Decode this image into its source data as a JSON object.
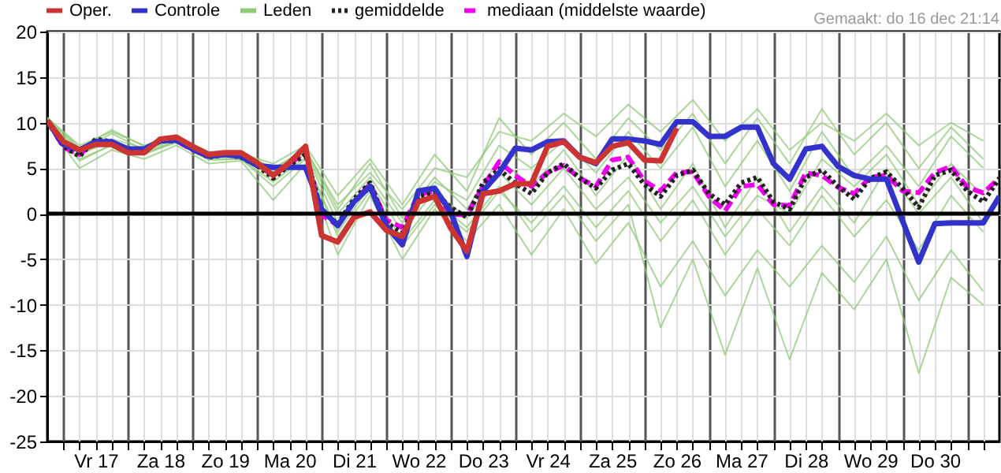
{
  "chart_data": {
    "type": "line",
    "annotations": [
      "Gemaakt: do 16 dec 21:14"
    ],
    "x": [
      "--12-16T18:00",
      "--12-17T00:00",
      "--12-17T06:00",
      "--12-17T12:00",
      "--12-17T18:00",
      "--12-18T00:00",
      "--12-18T06:00",
      "--12-18T12:00",
      "--12-18T18:00",
      "--12-19T00:00",
      "--12-19T06:00",
      "--12-19T12:00",
      "--12-19T18:00",
      "--12-20T00:00",
      "--12-20T06:00",
      "--12-20T12:00",
      "--12-20T18:00",
      "--12-21T00:00",
      "--12-21T06:00",
      "--12-21T12:00",
      "--12-21T18:00",
      "--12-22T00:00",
      "--12-22T06:00",
      "--12-22T12:00",
      "--12-22T18:00",
      "--12-23T00:00",
      "--12-23T06:00",
      "--12-23T12:00",
      "--12-23T18:00",
      "--12-24T00:00",
      "--12-24T06:00",
      "--12-24T12:00",
      "--12-24T18:00",
      "--12-25T00:00",
      "--12-25T06:00",
      "--12-25T12:00",
      "--12-25T18:00",
      "--12-26T00:00",
      "--12-26T06:00",
      "--12-26T12:00",
      "--12-26T18:00",
      "--12-27T00:00",
      "--12-27T06:00",
      "--12-27T12:00",
      "--12-27T18:00",
      "--12-28T00:00",
      "--12-28T06:00",
      "--12-28T12:00",
      "--12-28T18:00",
      "--12-29T00:00",
      "--12-29T06:00",
      "--12-29T12:00",
      "--12-29T18:00",
      "--12-30T00:00",
      "--12-30T06:00",
      "--12-30T12:00",
      "--12-30T18:00",
      "--12-31T00:00",
      "--12-31T06:00",
      "--12-31T12:00"
    ],
    "series": [
      {
        "name": "Oper.",
        "color": "#cc3333",
        "line_style": "solid",
        "values": [
          10.2,
          7.9,
          7.0,
          7.6,
          7.6,
          6.7,
          6.7,
          8.2,
          8.4,
          7.4,
          6.5,
          6.7,
          6.7,
          5.6,
          4.2,
          5.6,
          7.4,
          -2.4,
          -3.1,
          -0.4,
          0.2,
          -1.8,
          -2.5,
          1.3,
          1.9,
          -1.6,
          -4.1,
          2.2,
          2.5,
          3.3,
          3.3,
          7.4,
          7.9,
          6.2,
          5.6,
          7.4,
          7.8,
          5.9,
          5.8,
          9.4,
          null,
          null,
          null,
          null,
          null,
          null,
          null,
          null,
          null,
          null,
          null,
          null,
          null,
          null,
          null,
          null,
          null,
          null,
          null,
          null
        ]
      },
      {
        "name": "Controle",
        "color": "#3333cc",
        "line_style": "solid",
        "values": [
          10.2,
          7.6,
          7.0,
          7.9,
          7.9,
          7.1,
          7.1,
          8.0,
          8.1,
          7.1,
          6.3,
          6.5,
          6.3,
          5.3,
          5.1,
          5.1,
          5.1,
          0.5,
          -1.3,
          1.3,
          3.0,
          -1.3,
          -3.4,
          2.5,
          2.8,
          0.2,
          -4.7,
          2.5,
          4.5,
          7.2,
          7.0,
          7.9,
          8.0,
          6.2,
          5.5,
          8.2,
          8.2,
          8.0,
          7.6,
          10.1,
          10.1,
          8.5,
          8.5,
          9.5,
          9.5,
          5.5,
          3.8,
          7.1,
          7.4,
          5.2,
          4.2,
          3.8,
          3.8,
          -0.8,
          -5.3,
          -1.1,
          -1.0,
          -1.0,
          -1.0,
          1.9
        ]
      },
      {
        "name": "Leden",
        "color": "#90c978",
        "x": [
          "--12-16T18:00",
          "--12-17T06:00",
          "--12-17T18:00",
          "--12-18T06:00",
          "--12-18T18:00",
          "--12-19T06:00",
          "--12-19T18:00",
          "--12-20T06:00",
          "--12-20T18:00",
          "--12-21T06:00",
          "--12-21T18:00",
          "--12-22T06:00",
          "--12-22T18:00",
          "--12-23T06:00",
          "--12-23T18:00",
          "--12-24T06:00",
          "--12-24T18:00",
          "--12-25T06:00",
          "--12-25T18:00",
          "--12-26T06:00",
          "--12-26T18:00",
          "--12-27T06:00",
          "--12-27T18:00",
          "--12-28T06:00",
          "--12-28T18:00",
          "--12-29T06:00",
          "--12-29T18:00",
          "--12-30T06:00",
          "--12-30T18:00",
          "--12-31T06:00"
        ],
        "values": [
          10.5,
          7.5,
          9.0,
          7.5,
          8.5,
          6.8,
          6.8,
          5.0,
          7.0,
          1.0,
          4.5,
          0.5,
          5.0,
          4.0,
          9.0,
          8.0,
          11.0,
          8.5,
          12.0,
          9.0,
          12.5,
          8.0,
          11.5,
          7.0,
          10.0,
          8.0,
          11.0,
          7.5,
          10.0,
          8.0
        ]
      },
      {
        "name": "gemiddelde",
        "color": "#222222",
        "line_style": "dotted",
        "values": [
          10.2,
          7.4,
          6.3,
          8.2,
          7.9,
          7.1,
          6.9,
          8.0,
          8.0,
          7.1,
          6.2,
          6.5,
          6.2,
          5.3,
          3.9,
          5.3,
          6.5,
          0.3,
          -1.1,
          1.6,
          3.4,
          -1.0,
          -2.1,
          1.9,
          2.3,
          0.7,
          -0.4,
          3.4,
          4.9,
          3.3,
          2.2,
          4.5,
          5.5,
          3.9,
          2.8,
          4.8,
          5.5,
          3.2,
          1.9,
          4.2,
          4.8,
          2.2,
          1.0,
          3.4,
          4.0,
          1.3,
          0.5,
          4.0,
          4.8,
          3.0,
          1.6,
          3.9,
          4.6,
          2.8,
          0.7,
          4.2,
          4.8,
          2.5,
          1.3,
          3.9
        ]
      },
      {
        "name": "mediaan (middelste waarde)",
        "color": "#ee00ee",
        "line_style": "dashed",
        "values": [
          10.2,
          7.3,
          6.5,
          8.0,
          7.8,
          7.0,
          6.9,
          8.1,
          8.0,
          7.0,
          6.3,
          6.6,
          6.3,
          5.4,
          4.2,
          5.4,
          6.8,
          -0.1,
          -1.3,
          1.3,
          3.3,
          -0.7,
          -1.5,
          2.1,
          2.5,
          -0.1,
          -0.1,
          3.0,
          5.7,
          4.2,
          3.0,
          4.5,
          5.3,
          3.9,
          3.0,
          5.9,
          6.2,
          3.6,
          2.5,
          4.5,
          4.6,
          1.9,
          0.3,
          3.0,
          3.2,
          1.0,
          0.9,
          4.5,
          4.2,
          2.9,
          2.2,
          4.0,
          4.2,
          2.5,
          2.3,
          4.5,
          5.2,
          2.9,
          2.3,
          3.9
        ]
      },
      {
        "name": null,
        "color": "#90c978",
        "x": [
          "--12-16T18:00",
          "--12-17T06:00",
          "--12-17T18:00",
          "--12-18T06:00",
          "--12-18T18:00",
          "--12-19T06:00",
          "--12-19T18:00",
          "--12-20T06:00",
          "--12-20T18:00",
          "--12-21T06:00",
          "--12-21T18:00",
          "--12-22T06:00",
          "--12-22T18:00",
          "--12-23T06:00",
          "--12-23T18:00",
          "--12-24T06:00",
          "--12-24T18:00",
          "--12-25T06:00",
          "--12-25T18:00",
          "--12-26T06:00",
          "--12-26T18:00",
          "--12-27T06:00",
          "--12-27T18:00",
          "--12-28T06:00",
          "--12-28T18:00",
          "--12-29T06:00",
          "--12-29T18:00",
          "--12-30T06:00",
          "--12-30T18:00",
          "--12-31T06:00"
        ],
        "values": [
          9.8,
          5.0,
          7.0,
          6.0,
          7.5,
          5.5,
          5.8,
          1.5,
          5.5,
          -4.5,
          2.0,
          -5.0,
          0.5,
          -3.0,
          1.0,
          -4.5,
          0.5,
          -5.5,
          -1.0,
          -8.0,
          -3.0,
          -9.0,
          -4.0,
          -8.0,
          -3.5,
          -7.5,
          -2.5,
          -9.5,
          -4.0,
          -8.5
        ]
      },
      {
        "name": null,
        "color": "#90c978",
        "x": [
          "--12-16T18:00",
          "--12-17T06:00",
          "--12-17T18:00",
          "--12-18T06:00",
          "--12-18T18:00",
          "--12-19T06:00",
          "--12-19T18:00",
          "--12-20T06:00",
          "--12-20T18:00",
          "--12-21T06:00",
          "--12-21T18:00",
          "--12-22T06:00",
          "--12-22T18:00",
          "--12-23T06:00",
          "--12-23T18:00",
          "--12-24T06:00",
          "--12-24T18:00",
          "--12-25T06:00",
          "--12-25T18:00",
          "--12-26T06:00",
          "--12-26T18:00",
          "--12-27T06:00",
          "--12-27T18:00",
          "--12-28T06:00",
          "--12-28T18:00",
          "--12-29T06:00",
          "--12-29T18:00",
          "--12-30T06:00",
          "--12-30T18:00",
          "--12-31T06:00"
        ],
        "values": [
          10.0,
          6.0,
          7.5,
          6.5,
          8.0,
          6.0,
          6.0,
          3.0,
          6.0,
          -2.0,
          3.0,
          -3.0,
          1.5,
          -1.5,
          3.0,
          -2.0,
          2.0,
          -3.0,
          1.0,
          -12.5,
          -5.0,
          -15.5,
          -6.0,
          -16.0,
          -6.5,
          -10.5,
          -5.0,
          -17.5,
          -7.0,
          -10.0
        ]
      },
      {
        "name": null,
        "color": "#90c978",
        "x": [
          "--12-16T18:00",
          "--12-17T06:00",
          "--12-17T18:00",
          "--12-18T06:00",
          "--12-18T18:00",
          "--12-19T06:00",
          "--12-19T18:00",
          "--12-20T06:00",
          "--12-20T18:00",
          "--12-21T06:00",
          "--12-21T18:00",
          "--12-22T06:00",
          "--12-22T18:00",
          "--12-23T06:00",
          "--12-23T18:00",
          "--12-24T06:00",
          "--12-24T18:00",
          "--12-25T06:00",
          "--12-25T18:00",
          "--12-26T06:00",
          "--12-26T18:00",
          "--12-27T06:00",
          "--12-27T18:00",
          "--12-28T06:00",
          "--12-28T18:00",
          "--12-29T06:00",
          "--12-29T18:00",
          "--12-30T06:00",
          "--12-30T18:00",
          "--12-31T06:00"
        ],
        "values": [
          10.3,
          6.8,
          8.2,
          7.2,
          8.2,
          6.4,
          6.5,
          4.5,
          6.8,
          0.0,
          4.0,
          -1.0,
          3.5,
          1.5,
          7.5,
          5.0,
          8.0,
          4.5,
          9.0,
          5.0,
          9.5,
          3.0,
          8.0,
          2.5,
          9.0,
          4.0,
          7.5,
          3.0,
          8.5,
          5.0
        ]
      },
      {
        "name": null,
        "color": "#90c978",
        "x": [
          "--12-16T18:00",
          "--12-17T06:00",
          "--12-17T18:00",
          "--12-18T06:00",
          "--12-18T18:00",
          "--12-19T06:00",
          "--12-19T18:00",
          "--12-20T06:00",
          "--12-20T18:00",
          "--12-21T06:00",
          "--12-21T18:00",
          "--12-22T06:00",
          "--12-22T18:00",
          "--12-23T06:00",
          "--12-23T18:00",
          "--12-24T06:00",
          "--12-24T18:00",
          "--12-25T06:00",
          "--12-25T18:00",
          "--12-26T06:00",
          "--12-26T18:00",
          "--12-27T06:00",
          "--12-27T18:00",
          "--12-28T06:00",
          "--12-28T18:00",
          "--12-29T06:00",
          "--12-29T18:00",
          "--12-30T06:00",
          "--12-30T18:00",
          "--12-31T06:00"
        ],
        "values": [
          10.1,
          5.8,
          7.6,
          6.6,
          7.8,
          5.9,
          6.0,
          3.5,
          6.2,
          -2.5,
          2.5,
          -3.5,
          1.0,
          -2.0,
          2.5,
          -1.0,
          3.0,
          -1.5,
          2.5,
          -3.0,
          1.5,
          -4.5,
          0.5,
          -3.5,
          2.0,
          -2.5,
          1.5,
          -4.0,
          2.0,
          -2.0
        ]
      },
      {
        "name": null,
        "color": "#90c978",
        "x": [
          "--12-16T18:00",
          "--12-17T06:00",
          "--12-17T18:00",
          "--12-18T06:00",
          "--12-18T18:00",
          "--12-19T06:00",
          "--12-19T18:00",
          "--12-20T06:00",
          "--12-20T18:00",
          "--12-21T06:00",
          "--12-21T18:00",
          "--12-22T06:00",
          "--12-22T18:00",
          "--12-23T06:00",
          "--12-23T18:00",
          "--12-24T06:00",
          "--12-24T18:00",
          "--12-25T06:00",
          "--12-25T18:00",
          "--12-26T06:00",
          "--12-26T18:00",
          "--12-27T06:00",
          "--12-27T18:00",
          "--12-28T06:00",
          "--12-28T18:00",
          "--12-29T06:00",
          "--12-29T18:00",
          "--12-30T06:00",
          "--12-30T18:00",
          "--12-31T06:00"
        ],
        "values": [
          10.4,
          7.0,
          8.8,
          7.0,
          8.1,
          6.5,
          6.4,
          4.8,
          7.2,
          0.5,
          5.5,
          -0.5,
          4.0,
          0.5,
          6.0,
          3.0,
          7.0,
          2.0,
          6.5,
          0.5,
          5.5,
          -1.5,
          4.0,
          -2.0,
          3.0,
          -1.0,
          5.0,
          0.0,
          4.0,
          -1.0
        ]
      },
      {
        "name": null,
        "color": "#90c978",
        "x": [
          "--12-16T18:00",
          "--12-17T06:00",
          "--12-17T18:00",
          "--12-18T06:00",
          "--12-18T18:00",
          "--12-19T06:00",
          "--12-19T18:00",
          "--12-20T06:00",
          "--12-20T18:00",
          "--12-21T06:00",
          "--12-21T18:00",
          "--12-22T06:00",
          "--12-22T18:00",
          "--12-23T06:00",
          "--12-23T18:00",
          "--12-24T06:00",
          "--12-24T18:00",
          "--12-25T06:00",
          "--12-25T18:00",
          "--12-26T06:00",
          "--12-26T18:00",
          "--12-27T06:00",
          "--12-27T18:00",
          "--12-28T06:00",
          "--12-28T18:00",
          "--12-29T06:00",
          "--12-29T18:00",
          "--12-30T06:00",
          "--12-30T18:00",
          "--12-31T06:00"
        ],
        "values": [
          10.2,
          6.5,
          8.0,
          6.8,
          7.9,
          6.2,
          6.2,
          4.0,
          6.6,
          -1.0,
          3.5,
          -2.0,
          2.5,
          -0.5,
          4.5,
          1.0,
          5.0,
          0.5,
          4.0,
          -1.0,
          3.0,
          -2.5,
          2.0,
          0.0,
          6.0,
          3.0,
          6.5,
          1.0,
          5.5,
          2.0
        ]
      },
      {
        "name": null,
        "color": "#90c978",
        "x": [
          "--12-16T18:00",
          "--12-17T06:00",
          "--12-17T18:00",
          "--12-18T06:00",
          "--12-18T18:00",
          "--12-19T06:00",
          "--12-19T18:00",
          "--12-20T06:00",
          "--12-20T18:00",
          "--12-21T06:00",
          "--12-21T18:00",
          "--12-22T06:00",
          "--12-22T18:00",
          "--12-23T06:00",
          "--12-23T18:00",
          "--12-24T06:00",
          "--12-24T18:00",
          "--12-25T06:00",
          "--12-25T18:00",
          "--12-26T06:00",
          "--12-26T18:00",
          "--12-27T06:00",
          "--12-27T18:00",
          "--12-28T06:00",
          "--12-28T18:00",
          "--12-29T06:00",
          "--12-29T18:00",
          "--12-30T06:00",
          "--12-30T18:00",
          "--12-31T06:00"
        ],
        "values": [
          10.6,
          7.2,
          9.2,
          7.4,
          8.6,
          6.6,
          6.6,
          5.5,
          7.5,
          2.0,
          6.0,
          1.0,
          6.5,
          2.5,
          10.5,
          6.5,
          10.0,
          6.0,
          10.5,
          7.0,
          11.0,
          5.5,
          10.5,
          5.5,
          11.5,
          6.5,
          10.0,
          5.0,
          9.5,
          6.0
        ]
      }
    ],
    "xlim": [
      "--12-16T18:00",
      "--12-31T12:00"
    ],
    "xticks": [
      {
        "value": "--12-17T00:00",
        "label": null
      },
      {
        "value": "--12-17T06:00",
        "label": null
      },
      {
        "value": "--12-17T12:00",
        "label": "Vr 17"
      },
      {
        "value": "--12-17T18:00",
        "label": null
      },
      {
        "value": "--12-18T00:00",
        "label": null
      },
      {
        "value": "--12-18T06:00",
        "label": null
      },
      {
        "value": "--12-18T12:00",
        "label": "Za 18"
      },
      {
        "value": "--12-18T18:00",
        "label": null
      },
      {
        "value": "--12-19T00:00",
        "label": null
      },
      {
        "value": "--12-19T06:00",
        "label": null
      },
      {
        "value": "--12-19T12:00",
        "label": "Zo 19"
      },
      {
        "value": "--12-19T18:00",
        "label": null
      },
      {
        "value": "--12-20T00:00",
        "label": null
      },
      {
        "value": "--12-20T06:00",
        "label": null
      },
      {
        "value": "--12-20T12:00",
        "label": "Ma 20"
      },
      {
        "value": "--12-20T18:00",
        "label": null
      },
      {
        "value": "--12-21T00:00",
        "label": null
      },
      {
        "value": "--12-21T06:00",
        "label": null
      },
      {
        "value": "--12-21T12:00",
        "label": "Di 21"
      },
      {
        "value": "--12-21T18:00",
        "label": null
      },
      {
        "value": "--12-22T00:00",
        "label": null
      },
      {
        "value": "--12-22T06:00",
        "label": null
      },
      {
        "value": "--12-22T12:00",
        "label": "Wo 22"
      },
      {
        "value": "--12-22T18:00",
        "label": null
      },
      {
        "value": "--12-23T00:00",
        "label": null
      },
      {
        "value": "--12-23T06:00",
        "label": null
      },
      {
        "value": "--12-23T12:00",
        "label": "Do 23"
      },
      {
        "value": "--12-23T18:00",
        "label": null
      },
      {
        "value": "--12-24T00:00",
        "label": null
      },
      {
        "value": "--12-24T06:00",
        "label": null
      },
      {
        "value": "--12-24T12:00",
        "label": "Vr 24"
      },
      {
        "value": "--12-24T18:00",
        "label": null
      },
      {
        "value": "--12-25T00:00",
        "label": null
      },
      {
        "value": "--12-25T06:00",
        "label": null
      },
      {
        "value": "--12-25T12:00",
        "label": "Za 25"
      },
      {
        "value": "--12-25T18:00",
        "label": null
      },
      {
        "value": "--12-26T00:00",
        "label": null
      },
      {
        "value": "--12-26T06:00",
        "label": null
      },
      {
        "value": "--12-26T12:00",
        "label": "Zo 26"
      },
      {
        "value": "--12-26T18:00",
        "label": null
      },
      {
        "value": "--12-27T00:00",
        "label": null
      },
      {
        "value": "--12-27T06:00",
        "label": null
      },
      {
        "value": "--12-27T12:00",
        "label": "Ma 27"
      },
      {
        "value": "--12-27T18:00",
        "label": null
      },
      {
        "value": "--12-28T00:00",
        "label": null
      },
      {
        "value": "--12-28T06:00",
        "label": null
      },
      {
        "value": "--12-28T12:00",
        "label": "Di 28"
      },
      {
        "value": "--12-28T18:00",
        "label": null
      },
      {
        "value": "--12-29T00:00",
        "label": null
      },
      {
        "value": "--12-29T06:00",
        "label": null
      },
      {
        "value": "--12-29T12:00",
        "label": "Wo 29"
      },
      {
        "value": "--12-29T18:00",
        "label": null
      },
      {
        "value": "--12-30T00:00",
        "label": null
      },
      {
        "value": "--12-30T06:00",
        "label": null
      },
      {
        "value": "--12-30T12:00",
        "label": "Do 30"
      },
      {
        "value": "--12-30T18:00",
        "label": null
      },
      {
        "value": "--12-31T00:00",
        "label": null
      },
      {
        "value": "--12-31T06:00",
        "label": null
      }
    ],
    "ylim": [
      -25,
      20
    ],
    "yticks": [
      -25,
      -20,
      -15,
      -10,
      -5,
      0,
      5,
      10,
      15,
      20
    ],
    "ref_lines": [
      {
        "axis": "y",
        "value": 0,
        "label": null,
        "color": "#000000"
      }
    ],
    "grid": true,
    "legend": "top"
  }
}
